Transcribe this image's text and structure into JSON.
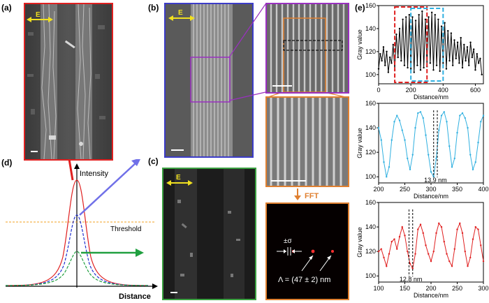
{
  "panel_labels": {
    "a": "(a)",
    "b": "(b)",
    "c": "(c)",
    "d": "(d)",
    "e": "(e)"
  },
  "field_label": "E",
  "fft_label": "FFT",
  "diagram_d": {
    "y_axis_label": "Intensity",
    "x_axis_label": "Distance",
    "threshold_label": "Threshold",
    "colors": {
      "high": "#e02020",
      "mid": "#2030d0",
      "low": "#20a040",
      "threshold": "#f0a020"
    }
  },
  "fft_annotations": {
    "sigma": "±σ",
    "period": "Λ = (47 ± 2) nm"
  },
  "colors": {
    "a_border": "#e02020",
    "b_border": "#3c3cc8",
    "c_border": "#3aa040",
    "zoom_border": "#e08030",
    "purple": "#9a30c0",
    "arrow_yellow": "#f0e020"
  },
  "chart_data": [
    {
      "type": "line",
      "xlabel": "Distance/nm",
      "ylabel": "Gray value",
      "xlim": [
        0,
        650
      ],
      "ylim": [
        92,
        160
      ],
      "xticks": [
        0,
        200,
        400,
        600
      ],
      "yticks": [
        100,
        120,
        140,
        160
      ],
      "color": "#000000",
      "x": [
        0,
        10,
        20,
        30,
        40,
        50,
        60,
        70,
        80,
        90,
        100,
        110,
        120,
        130,
        140,
        150,
        160,
        170,
        180,
        190,
        200,
        210,
        220,
        230,
        240,
        250,
        260,
        270,
        280,
        290,
        300,
        310,
        320,
        330,
        340,
        350,
        360,
        370,
        380,
        390,
        400,
        410,
        420,
        430,
        440,
        450,
        460,
        470,
        480,
        490,
        500,
        510,
        520,
        530,
        540,
        550,
        560,
        570,
        580,
        590,
        600,
        610,
        620,
        630,
        640
      ],
      "y": [
        105,
        118,
        112,
        124,
        108,
        120,
        102,
        115,
        110,
        126,
        104,
        135,
        115,
        140,
        112,
        148,
        108,
        150,
        106,
        152,
        105,
        150,
        102,
        147,
        108,
        152,
        104,
        155,
        106,
        148,
        107,
        150,
        110,
        154,
        104,
        152,
        108,
        148,
        103,
        142,
        110,
        145,
        105,
        138,
        112,
        136,
        108,
        130,
        114,
        128,
        110,
        132,
        106,
        126,
        112,
        124,
        108,
        128,
        115,
        122,
        104,
        118,
        110,
        114,
        100
      ]
    },
    {
      "type": "line",
      "xlabel": "Distance/nm",
      "ylabel": "Gray value",
      "xlim": [
        200,
        400
      ],
      "ylim": [
        95,
        160
      ],
      "xticks": [
        200,
        250,
        300,
        350,
        400
      ],
      "yticks": [
        100,
        120,
        140,
        160
      ],
      "color": "#30b0e0",
      "x": [
        200,
        205,
        210,
        215,
        220,
        225,
        230,
        235,
        240,
        245,
        250,
        255,
        260,
        265,
        270,
        275,
        280,
        285,
        290,
        295,
        300,
        305,
        310,
        315,
        320,
        325,
        330,
        335,
        340,
        345,
        350,
        355,
        360,
        365,
        370,
        375,
        380,
        385,
        390,
        395,
        400
      ],
      "y": [
        140,
        130,
        112,
        100,
        108,
        130,
        145,
        150,
        146,
        138,
        130,
        115,
        106,
        118,
        140,
        152,
        153,
        148,
        134,
        118,
        104,
        100,
        115,
        138,
        150,
        153,
        145,
        125,
        108,
        115,
        136,
        150,
        152,
        148,
        140,
        118,
        106,
        112,
        128,
        145,
        150
      ],
      "annotation": "13.9 nm"
    },
    {
      "type": "line",
      "xlabel": "Distance/nm",
      "ylabel": "Gray value",
      "xlim": [
        100,
        300
      ],
      "ylim": [
        95,
        160
      ],
      "xticks": [
        100,
        150,
        200,
        250,
        300
      ],
      "yticks": [
        100,
        120,
        140,
        160
      ],
      "color": "#e02020",
      "x": [
        100,
        105,
        110,
        115,
        120,
        125,
        130,
        135,
        140,
        145,
        150,
        155,
        160,
        165,
        170,
        175,
        180,
        185,
        190,
        195,
        200,
        205,
        210,
        215,
        220,
        225,
        230,
        235,
        240,
        245,
        250,
        255,
        260,
        265,
        270,
        275,
        280,
        285,
        290,
        295,
        300
      ],
      "y": [
        120,
        122,
        115,
        108,
        118,
        128,
        130,
        122,
        132,
        140,
        133,
        120,
        110,
        106,
        118,
        138,
        142,
        135,
        125,
        118,
        112,
        120,
        135,
        143,
        140,
        128,
        118,
        112,
        108,
        122,
        138,
        143,
        135,
        120,
        108,
        115,
        130,
        140,
        138,
        125,
        112
      ],
      "annotation": "12.8 nm"
    }
  ]
}
